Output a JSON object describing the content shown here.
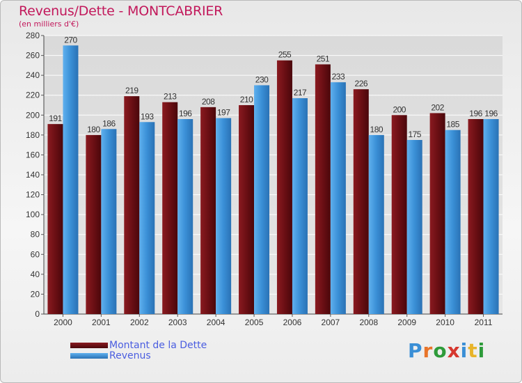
{
  "title": "Revenus/Dette - MONTCABRIER",
  "subtitle": "(en milliers d'€)",
  "brand": "Proxiti",
  "colors": {
    "dette": "#6b0f14",
    "revenus": "#3a8fd6",
    "title": "#c2185b",
    "legend_text": "#4a5de0"
  },
  "chart_data": {
    "type": "bar",
    "categories": [
      "2000",
      "2001",
      "2002",
      "2003",
      "2004",
      "2005",
      "2006",
      "2007",
      "2008",
      "2009",
      "2010",
      "2011"
    ],
    "series": [
      {
        "name": "Montant de la Dette",
        "values": [
          191,
          180,
          219,
          213,
          208,
          210,
          255,
          251,
          226,
          200,
          202,
          196
        ]
      },
      {
        "name": "Revenus",
        "values": [
          270,
          186,
          193,
          196,
          197,
          230,
          217,
          233,
          180,
          175,
          185,
          196
        ]
      }
    ],
    "yticks": [
      0,
      20,
      40,
      60,
      80,
      100,
      120,
      140,
      160,
      180,
      200,
      220,
      240,
      260,
      280
    ],
    "ylim": [
      0,
      280
    ],
    "grid": true,
    "data_labels": true,
    "legend_position": "bottom-left"
  }
}
